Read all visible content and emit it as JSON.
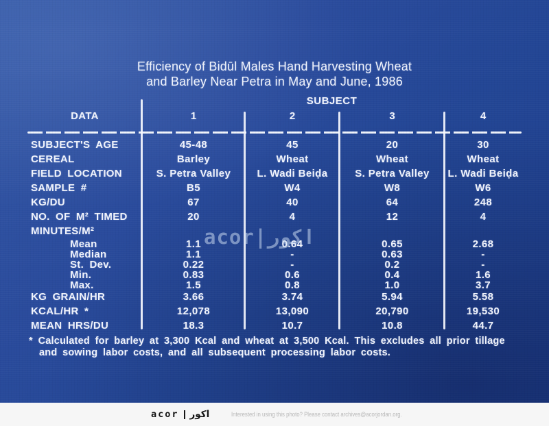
{
  "slide": {
    "title_line1": "Efficiency of Bidūl Males Hand Harvesting Wheat",
    "title_line2": "and Barley Near Petra in May and June, 1986",
    "watermark_text": "acor|اكور",
    "footnote_line1": "* Calculated for barley at 3,300 Kcal and wheat at 3,500 Kcal. This excludes all prior tillage",
    "footnote_line2": "and sowing labor costs, and all subsequent processing labor costs."
  },
  "chart_data": {
    "type": "table",
    "title": "Efficiency of Bidūl Males Hand Harvesting Wheat and Barley Near Petra in May and June, 1986",
    "corner_label": "DATA",
    "column_group_header": "SUBJECT",
    "column_headers": [
      "1",
      "2",
      "3",
      "4"
    ],
    "rows": [
      {
        "label": "SUBJECT'S AGE",
        "indent": false,
        "values": [
          "45-48",
          "45",
          "20",
          "30"
        ]
      },
      {
        "label": "CEREAL",
        "indent": false,
        "values": [
          "Barley",
          "Wheat",
          "Wheat",
          "Wheat"
        ]
      },
      {
        "label": "FIELD LOCATION",
        "indent": false,
        "values": [
          "S. Petra Valley",
          "L. Wadi Beiḍa",
          "S. Petra Valley",
          "L. Wadi Beiḍa"
        ]
      },
      {
        "label": "SAMPLE #",
        "indent": false,
        "values": [
          "B5",
          "W4",
          "W8",
          "W6"
        ]
      },
      {
        "label": "KG/DU",
        "indent": false,
        "values": [
          "67",
          "40",
          "64",
          "248"
        ]
      },
      {
        "label": "NO. OF M² TIMED",
        "indent": false,
        "values": [
          "20",
          "4",
          "12",
          "4"
        ]
      },
      {
        "label": "MINUTES/M²",
        "indent": false,
        "values": [
          "",
          "",
          "",
          ""
        ]
      },
      {
        "label": "Mean",
        "indent": true,
        "values": [
          "1.1",
          "0.64",
          "0.65",
          "2.68"
        ]
      },
      {
        "label": "Median",
        "indent": true,
        "values": [
          "1.1",
          "-",
          "0.63",
          "-"
        ]
      },
      {
        "label": "St. Dev.",
        "indent": true,
        "values": [
          "0.22",
          "-",
          "0.2",
          "-"
        ]
      },
      {
        "label": "Min.",
        "indent": true,
        "values": [
          "0.83",
          "0.6",
          "0.4",
          "1.6"
        ]
      },
      {
        "label": "Max.",
        "indent": true,
        "values": [
          "1.5",
          "0.8",
          "1.0",
          "3.7"
        ]
      },
      {
        "label": "KG GRAIN/HR",
        "indent": false,
        "values": [
          "3.66",
          "3.74",
          "5.94",
          "5.58"
        ]
      },
      {
        "label": "KCAL/HR *",
        "indent": false,
        "values": [
          "12,078",
          "13,090",
          "20,790",
          "19,530"
        ]
      },
      {
        "label": "MEAN HRS/DU",
        "indent": false,
        "values": [
          "18.3",
          "10.7",
          "10.8",
          "44.7"
        ]
      }
    ],
    "footnote": "* Calculated for barley at 3,300 Kcal and wheat at 3,500 Kcal. This excludes all prior tillage and sowing labor costs, and all subsequent processing labor costs.",
    "layout_hints": {
      "grid": "off",
      "legend": "none",
      "column_dividers": true,
      "dashed_header_rule": true
    }
  },
  "footer": {
    "logo_latin": "acor",
    "logo_arabic": "اكور",
    "contact_text": "Interested in using this photo? Please contact archives@acorjordan.org."
  },
  "colors": {
    "slide_blue": "#234695",
    "text_white": "#f1f4fc",
    "footer_bg": "#f6f6f6",
    "logo_black": "#151515",
    "contact_gray": "#b7b7b7"
  }
}
